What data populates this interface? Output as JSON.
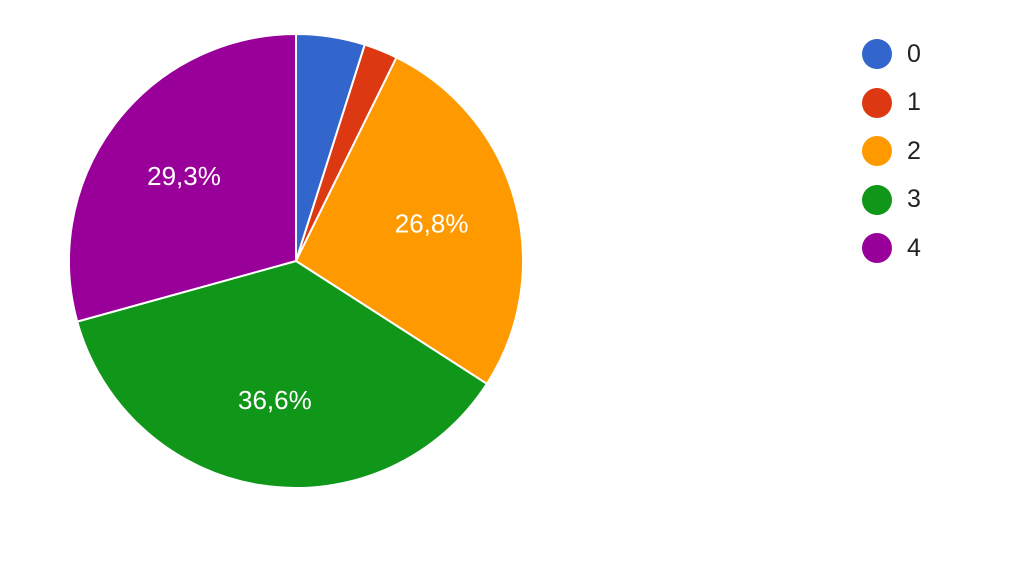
{
  "chart_data": {
    "type": "pie",
    "categories": [
      "0",
      "1",
      "2",
      "3",
      "4"
    ],
    "values": [
      4.9,
      2.4,
      26.8,
      36.6,
      29.3
    ],
    "colors": [
      "#3366cc",
      "#dc3912",
      "#ff9900",
      "#109618",
      "#990099"
    ],
    "data_labels": [
      "",
      "",
      "26,8%",
      "36,6%",
      "29,3%"
    ],
    "start_angle_deg": 90,
    "direction": "clockwise",
    "legend": {
      "position": "right-top",
      "entries": [
        "0",
        "1",
        "2",
        "3",
        "4"
      ]
    }
  }
}
